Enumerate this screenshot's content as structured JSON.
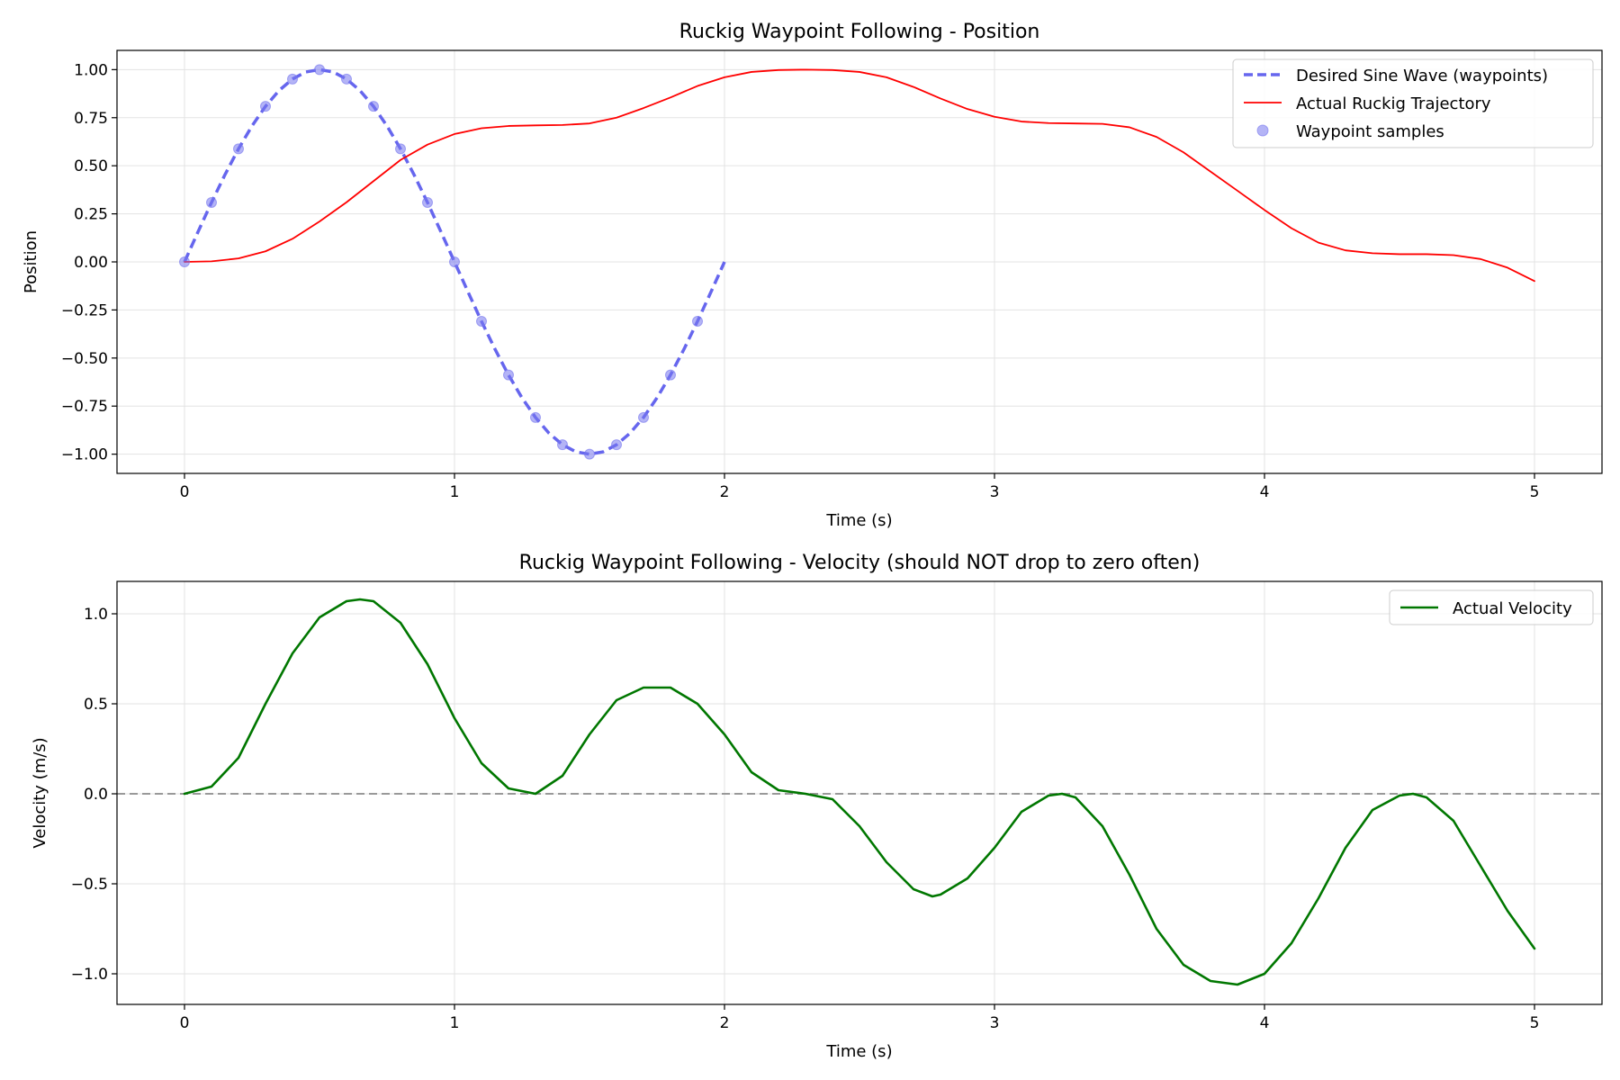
{
  "chart_data": [
    {
      "type": "line",
      "title": "Ruckig Waypoint Following - Position",
      "xlabel": "Time (s)",
      "ylabel": "Position",
      "xlim": [
        -0.25,
        5.25
      ],
      "ylim": [
        -1.1,
        1.1
      ],
      "xticks": [
        0,
        1,
        2,
        3,
        4,
        5
      ],
      "xtick_labels": [
        "0",
        "1",
        "2",
        "3",
        "4",
        "5"
      ],
      "yticks": [
        -1.0,
        -0.75,
        -0.5,
        -0.25,
        0.0,
        0.25,
        0.5,
        0.75,
        1.0
      ],
      "ytick_labels": [
        "−1.00",
        "−0.75",
        "−0.50",
        "−0.25",
        "0.00",
        "0.25",
        "0.50",
        "0.75",
        "1.00"
      ],
      "grid": true,
      "legend_position": "top-right",
      "series": [
        {
          "name": "Desired Sine Wave (waypoints)",
          "style": "dashed",
          "color": "#6666ee",
          "x": [
            0,
            0.05,
            0.1,
            0.15,
            0.2,
            0.25,
            0.3,
            0.35,
            0.4,
            0.45,
            0.5,
            0.55,
            0.6,
            0.65,
            0.7,
            0.75,
            0.8,
            0.85,
            0.9,
            0.95,
            1.0,
            1.05,
            1.1,
            1.15,
            1.2,
            1.25,
            1.3,
            1.35,
            1.4,
            1.45,
            1.5,
            1.55,
            1.6,
            1.65,
            1.7,
            1.75,
            1.8,
            1.85,
            1.9,
            1.95,
            2.0
          ],
          "y": [
            0,
            0.156,
            0.309,
            0.454,
            0.588,
            0.707,
            0.809,
            0.891,
            0.951,
            0.988,
            1.0,
            0.988,
            0.951,
            0.891,
            0.809,
            0.707,
            0.588,
            0.454,
            0.309,
            0.156,
            0,
            -0.156,
            -0.309,
            -0.454,
            -0.588,
            -0.707,
            -0.809,
            -0.891,
            -0.951,
            -0.988,
            -1.0,
            -0.988,
            -0.951,
            -0.891,
            -0.809,
            -0.707,
            -0.588,
            -0.454,
            -0.309,
            -0.156,
            0
          ]
        },
        {
          "name": "Actual Ruckig Trajectory",
          "style": "solid",
          "color": "#ff0000",
          "x": [
            0,
            0.1,
            0.2,
            0.3,
            0.4,
            0.5,
            0.6,
            0.7,
            0.8,
            0.9,
            1.0,
            1.1,
            1.2,
            1.3,
            1.4,
            1.5,
            1.6,
            1.7,
            1.8,
            1.9,
            2.0,
            2.1,
            2.2,
            2.3,
            2.4,
            2.5,
            2.6,
            2.7,
            2.8,
            2.9,
            3.0,
            3.1,
            3.2,
            3.3,
            3.4,
            3.5,
            3.6,
            3.7,
            3.8,
            3.9,
            4.0,
            4.1,
            4.2,
            4.3,
            4.4,
            4.5,
            4.6,
            4.7,
            4.8,
            4.9,
            5.0
          ],
          "y": [
            0,
            0.003,
            0.018,
            0.055,
            0.12,
            0.21,
            0.31,
            0.42,
            0.53,
            0.61,
            0.665,
            0.695,
            0.707,
            0.71,
            0.712,
            0.72,
            0.75,
            0.8,
            0.855,
            0.915,
            0.96,
            0.988,
            0.998,
            1.0,
            0.998,
            0.988,
            0.96,
            0.91,
            0.85,
            0.795,
            0.755,
            0.73,
            0.722,
            0.72,
            0.718,
            0.7,
            0.65,
            0.57,
            0.47,
            0.37,
            0.27,
            0.175,
            0.1,
            0.06,
            0.045,
            0.04,
            0.04,
            0.035,
            0.015,
            -0.03,
            -0.1
          ]
        },
        {
          "name": "Waypoint samples",
          "style": "markers",
          "color": "#7777ee",
          "x": [
            0,
            0.1,
            0.2,
            0.3,
            0.4,
            0.5,
            0.6,
            0.7,
            0.8,
            0.9,
            1.0,
            1.1,
            1.2,
            1.3,
            1.4,
            1.5,
            1.6,
            1.7,
            1.8,
            1.9
          ],
          "y": [
            0,
            0.309,
            0.588,
            0.809,
            0.951,
            1.0,
            0.951,
            0.809,
            0.588,
            0.309,
            0,
            -0.309,
            -0.588,
            -0.809,
            -0.951,
            -1.0,
            -0.951,
            -0.809,
            -0.588,
            -0.309
          ]
        }
      ]
    },
    {
      "type": "line",
      "title": "Ruckig Waypoint Following - Velocity (should NOT drop to zero often)",
      "xlabel": "Time (s)",
      "ylabel": "Velocity (m/s)",
      "xlim": [
        -0.25,
        5.25
      ],
      "ylim": [
        -1.17,
        1.18
      ],
      "xticks": [
        0,
        1,
        2,
        3,
        4,
        5
      ],
      "xtick_labels": [
        "0",
        "1",
        "2",
        "3",
        "4",
        "5"
      ],
      "yticks": [
        -1.0,
        -0.5,
        0.0,
        0.5,
        1.0
      ],
      "ytick_labels": [
        "−1.0",
        "−0.5",
        "0.0",
        "0.5",
        "1.0"
      ],
      "grid": true,
      "legend_position": "top-right",
      "reference_line": {
        "y": 0,
        "style": "dashed",
        "color": "#999999"
      },
      "series": [
        {
          "name": "Actual Velocity",
          "style": "solid",
          "color": "#007700",
          "x": [
            0,
            0.1,
            0.2,
            0.3,
            0.4,
            0.5,
            0.6,
            0.65,
            0.7,
            0.8,
            0.9,
            1.0,
            1.1,
            1.2,
            1.3,
            1.4,
            1.5,
            1.6,
            1.7,
            1.8,
            1.9,
            2.0,
            2.1,
            2.2,
            2.3,
            2.4,
            2.5,
            2.6,
            2.7,
            2.77,
            2.8,
            2.9,
            3.0,
            3.1,
            3.2,
            3.25,
            3.3,
            3.4,
            3.5,
            3.6,
            3.7,
            3.8,
            3.9,
            4.0,
            4.1,
            4.2,
            4.3,
            4.4,
            4.5,
            4.55,
            4.6,
            4.7,
            4.8,
            4.9,
            5.0
          ],
          "y": [
            0,
            0.04,
            0.2,
            0.5,
            0.78,
            0.98,
            1.07,
            1.08,
            1.07,
            0.95,
            0.72,
            0.42,
            0.17,
            0.03,
            0.0,
            0.1,
            0.33,
            0.52,
            0.59,
            0.59,
            0.5,
            0.33,
            0.12,
            0.02,
            0.0,
            -0.03,
            -0.18,
            -0.38,
            -0.53,
            -0.57,
            -0.56,
            -0.47,
            -0.3,
            -0.1,
            -0.01,
            0.0,
            -0.02,
            -0.18,
            -0.45,
            -0.75,
            -0.95,
            -1.04,
            -1.06,
            -1.0,
            -0.83,
            -0.58,
            -0.3,
            -0.09,
            -0.01,
            0.0,
            -0.02,
            -0.15,
            -0.4,
            -0.65,
            -0.86
          ]
        }
      ]
    }
  ]
}
